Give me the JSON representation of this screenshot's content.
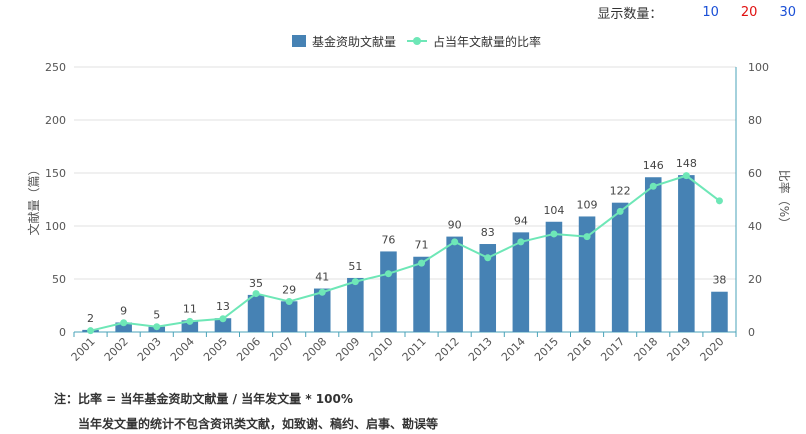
{
  "display_count": {
    "label": "显示数量：",
    "options": [
      {
        "value": "10",
        "color": "#1a4fd6"
      },
      {
        "value": "20",
        "color": "#e01010"
      },
      {
        "value": "30",
        "color": "#1a4fd6"
      }
    ]
  },
  "chart_data": {
    "type": "bar+line",
    "categories": [
      "2001",
      "2002",
      "2003",
      "2004",
      "2005",
      "2006",
      "2007",
      "2008",
      "2009",
      "2010",
      "2011",
      "2012",
      "2013",
      "2014",
      "2015",
      "2016",
      "2017",
      "2018",
      "2019",
      "2020"
    ],
    "series": [
      {
        "name": "基金资助文献量",
        "type": "bar",
        "axis": "left",
        "color": "#4682b4",
        "values": [
          2,
          9,
          5,
          11,
          13,
          35,
          29,
          41,
          51,
          76,
          71,
          90,
          83,
          94,
          104,
          109,
          122,
          146,
          148,
          38
        ]
      },
      {
        "name": "占当年文献量的比率",
        "type": "line",
        "axis": "right",
        "color": "#6ee7b7",
        "values": [
          0.5,
          3.5,
          2,
          4,
          5,
          14.5,
          11.5,
          15,
          19,
          22,
          26,
          34,
          28,
          34,
          37,
          36,
          45.5,
          55,
          59,
          49.5
        ]
      }
    ],
    "ylabel": "文献量（篇）",
    "y2label": "比率（%）",
    "ylim": [
      0,
      250
    ],
    "yticks": [
      0,
      50,
      100,
      150,
      200,
      250
    ],
    "y2lim": [
      0,
      100
    ],
    "y2ticks": [
      0,
      20,
      40,
      60,
      80,
      100
    ],
    "grid": true,
    "legend": "top-center"
  },
  "notes": {
    "line1": "注：比率 = 当年基金资助文献量 / 当年发文量 * 100%",
    "line2": "当年发文量的统计不包含资讯类文献，如致谢、稿约、启事、勘误等"
  }
}
